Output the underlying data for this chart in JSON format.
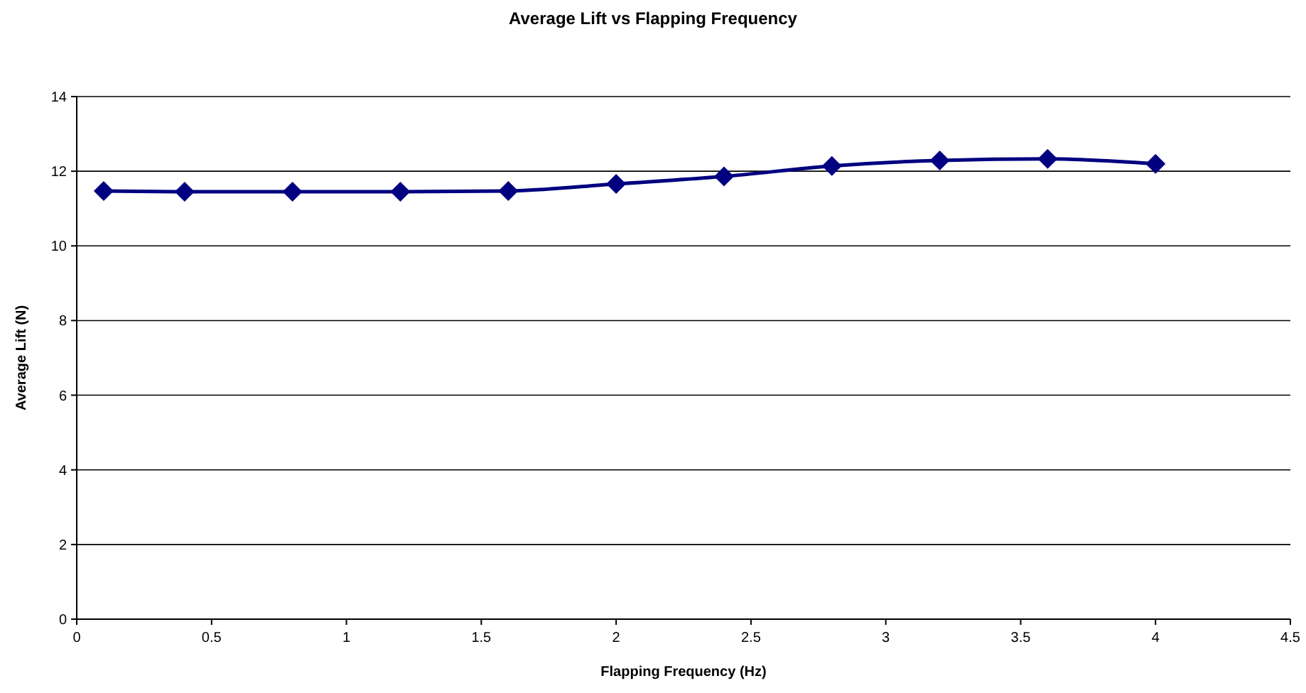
{
  "chart_data": {
    "type": "line",
    "title": "Average Lift vs Flapping Frequency",
    "xlabel": "Flapping Frequency (Hz)",
    "ylabel": "Average Lift (N)",
    "x": [
      0.1,
      0.4,
      0.8,
      1.2,
      1.6,
      2.0,
      2.4,
      2.8,
      3.2,
      3.6,
      4.0
    ],
    "series": [
      {
        "color": "#000080",
        "values": [
          11.47,
          11.45,
          11.45,
          11.45,
          11.47,
          11.66,
          11.86,
          12.14,
          12.29,
          12.33,
          12.2
        ]
      }
    ],
    "xlim": [
      0,
      4.5
    ],
    "xticks": [
      0,
      0.5,
      1,
      1.5,
      2,
      2.5,
      3,
      3.5,
      4,
      4.5
    ],
    "ylim": [
      0,
      14
    ],
    "yticks": [
      0,
      2,
      4,
      6,
      8,
      10,
      12,
      14
    ],
    "grid": "y",
    "marker": "diamond",
    "line_style": "solid"
  }
}
